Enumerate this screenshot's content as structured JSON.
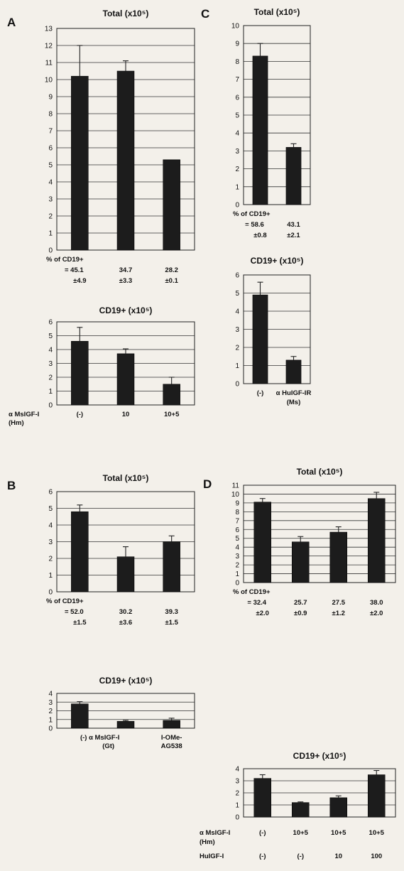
{
  "chart_data": [
    {
      "panel": "A",
      "type": "bar",
      "title": "Total (x10⁵)",
      "categories": [
        "(-)",
        "10",
        "10+5"
      ],
      "values": [
        10.2,
        10.5,
        5.3
      ],
      "errors": [
        1.8,
        0.6,
        0.0
      ],
      "ylim": [
        0,
        13
      ],
      "yticks": [
        0,
        1,
        2,
        3,
        4,
        5,
        6,
        7,
        8,
        9,
        10,
        11,
        12,
        13
      ],
      "percent_label": "% of CD19+",
      "percent_values": [
        "= 45.1",
        "34.7",
        "28.2"
      ],
      "percent_errors": [
        "±4.9",
        "±3.3",
        "±0.1"
      ]
    },
    {
      "panel": "A",
      "type": "bar",
      "title": "CD19+ (x10⁵)",
      "categories": [
        "(-)",
        "10",
        "10+5"
      ],
      "values": [
        4.6,
        3.7,
        1.5
      ],
      "errors": [
        1.0,
        0.35,
        0.5
      ],
      "ylim": [
        0,
        6
      ],
      "yticks": [
        0,
        1,
        2,
        3,
        4,
        5,
        6
      ],
      "xlabel_lines": [
        "α MsIGF-I",
        "(Hm)"
      ]
    },
    {
      "panel": "B",
      "type": "bar",
      "title": "Total (x10⁵)",
      "categories": [
        "(-)",
        "α MsIGF-I (Gt)",
        "I-OMe-AG538"
      ],
      "values": [
        4.8,
        2.1,
        3.0
      ],
      "errors": [
        0.4,
        0.6,
        0.35
      ],
      "ylim": [
        0,
        6
      ],
      "yticks": [
        0,
        1,
        2,
        3,
        4,
        5,
        6
      ],
      "percent_label": "% of CD19+",
      "percent_values": [
        "= 52.0",
        "30.2",
        "39.3"
      ],
      "percent_errors": [
        "±1.5",
        "±3.6",
        "±1.5"
      ]
    },
    {
      "panel": "B",
      "type": "bar",
      "title": "CD19+ (x10⁵)",
      "categories": [
        "(-)",
        "α MsIGF-I (Gt)",
        "I-OMe-AG538"
      ],
      "category_lines": [
        [
          "(-) α MsIGF-I",
          "(Gt)"
        ],
        [
          "I-OMe-",
          "AG538"
        ]
      ],
      "values": [
        2.8,
        0.8,
        0.9
      ],
      "errors": [
        0.25,
        0.1,
        0.25
      ],
      "ylim": [
        0,
        4
      ],
      "yticks": [
        0,
        1,
        2,
        3,
        4
      ]
    },
    {
      "panel": "C",
      "type": "bar",
      "title": "Total (x10⁵)",
      "categories": [
        "(-)",
        "α HuIGF-IR (Ms)"
      ],
      "values": [
        8.3,
        3.2
      ],
      "errors": [
        0.7,
        0.2
      ],
      "ylim": [
        0,
        10
      ],
      "yticks": [
        0,
        1,
        2,
        3,
        4,
        5,
        6,
        7,
        8,
        9,
        10
      ],
      "percent_label": "% of CD19+",
      "percent_values": [
        "= 58.6",
        "43.1"
      ],
      "percent_errors": [
        "±0.8",
        "±2.1"
      ]
    },
    {
      "panel": "C",
      "type": "bar",
      "title": "CD19+ (x10⁵)",
      "categories": [
        "(-)",
        "α HuIGF-IR (Ms)"
      ],
      "category_lines": [
        [
          "(-)"
        ],
        [
          "α HuIGF-IR",
          "(Ms)"
        ]
      ],
      "values": [
        4.9,
        1.3
      ],
      "errors": [
        0.7,
        0.2
      ],
      "ylim": [
        0,
        6
      ],
      "yticks": [
        0,
        1,
        2,
        3,
        4,
        5,
        6
      ]
    },
    {
      "panel": "D",
      "type": "bar",
      "title": "Total (x10⁵)",
      "categories": [
        "(-)",
        "10+5",
        "10+5",
        "10+5"
      ],
      "values": [
        9.1,
        4.6,
        5.7,
        9.5
      ],
      "errors": [
        0.4,
        0.6,
        0.6,
        0.7
      ],
      "ylim": [
        0,
        11
      ],
      "yticks": [
        0,
        1,
        2,
        3,
        4,
        5,
        6,
        7,
        8,
        9,
        10,
        11
      ],
      "percent_label": "% of CD19+",
      "percent_values": [
        "= 32.4",
        "25.7",
        "27.5",
        "38.0"
      ],
      "percent_errors": [
        "±2.0",
        "±0.9",
        "±1.2",
        "±2.0"
      ]
    },
    {
      "panel": "D",
      "type": "bar",
      "title": "CD19+ (x10⁵)",
      "categories": [
        "(-)",
        "10+5",
        "10+5",
        "10+5"
      ],
      "values": [
        3.2,
        1.2,
        1.6,
        3.5
      ],
      "errors": [
        0.3,
        0.05,
        0.15,
        0.35
      ],
      "ylim": [
        0,
        4
      ],
      "yticks": [
        0,
        1,
        2,
        3,
        4
      ],
      "row_labels": [
        {
          "lines": [
            "α MsIGF-I",
            "(Hm)"
          ],
          "values": [
            "(-)",
            "10+5",
            "10+5",
            "10+5"
          ]
        },
        {
          "lines": [
            "HuIGF-I"
          ],
          "values": [
            "(-)",
            "(-)",
            "10",
            "100"
          ]
        }
      ]
    }
  ],
  "panel_letters": [
    "A",
    "B",
    "C",
    "D"
  ]
}
